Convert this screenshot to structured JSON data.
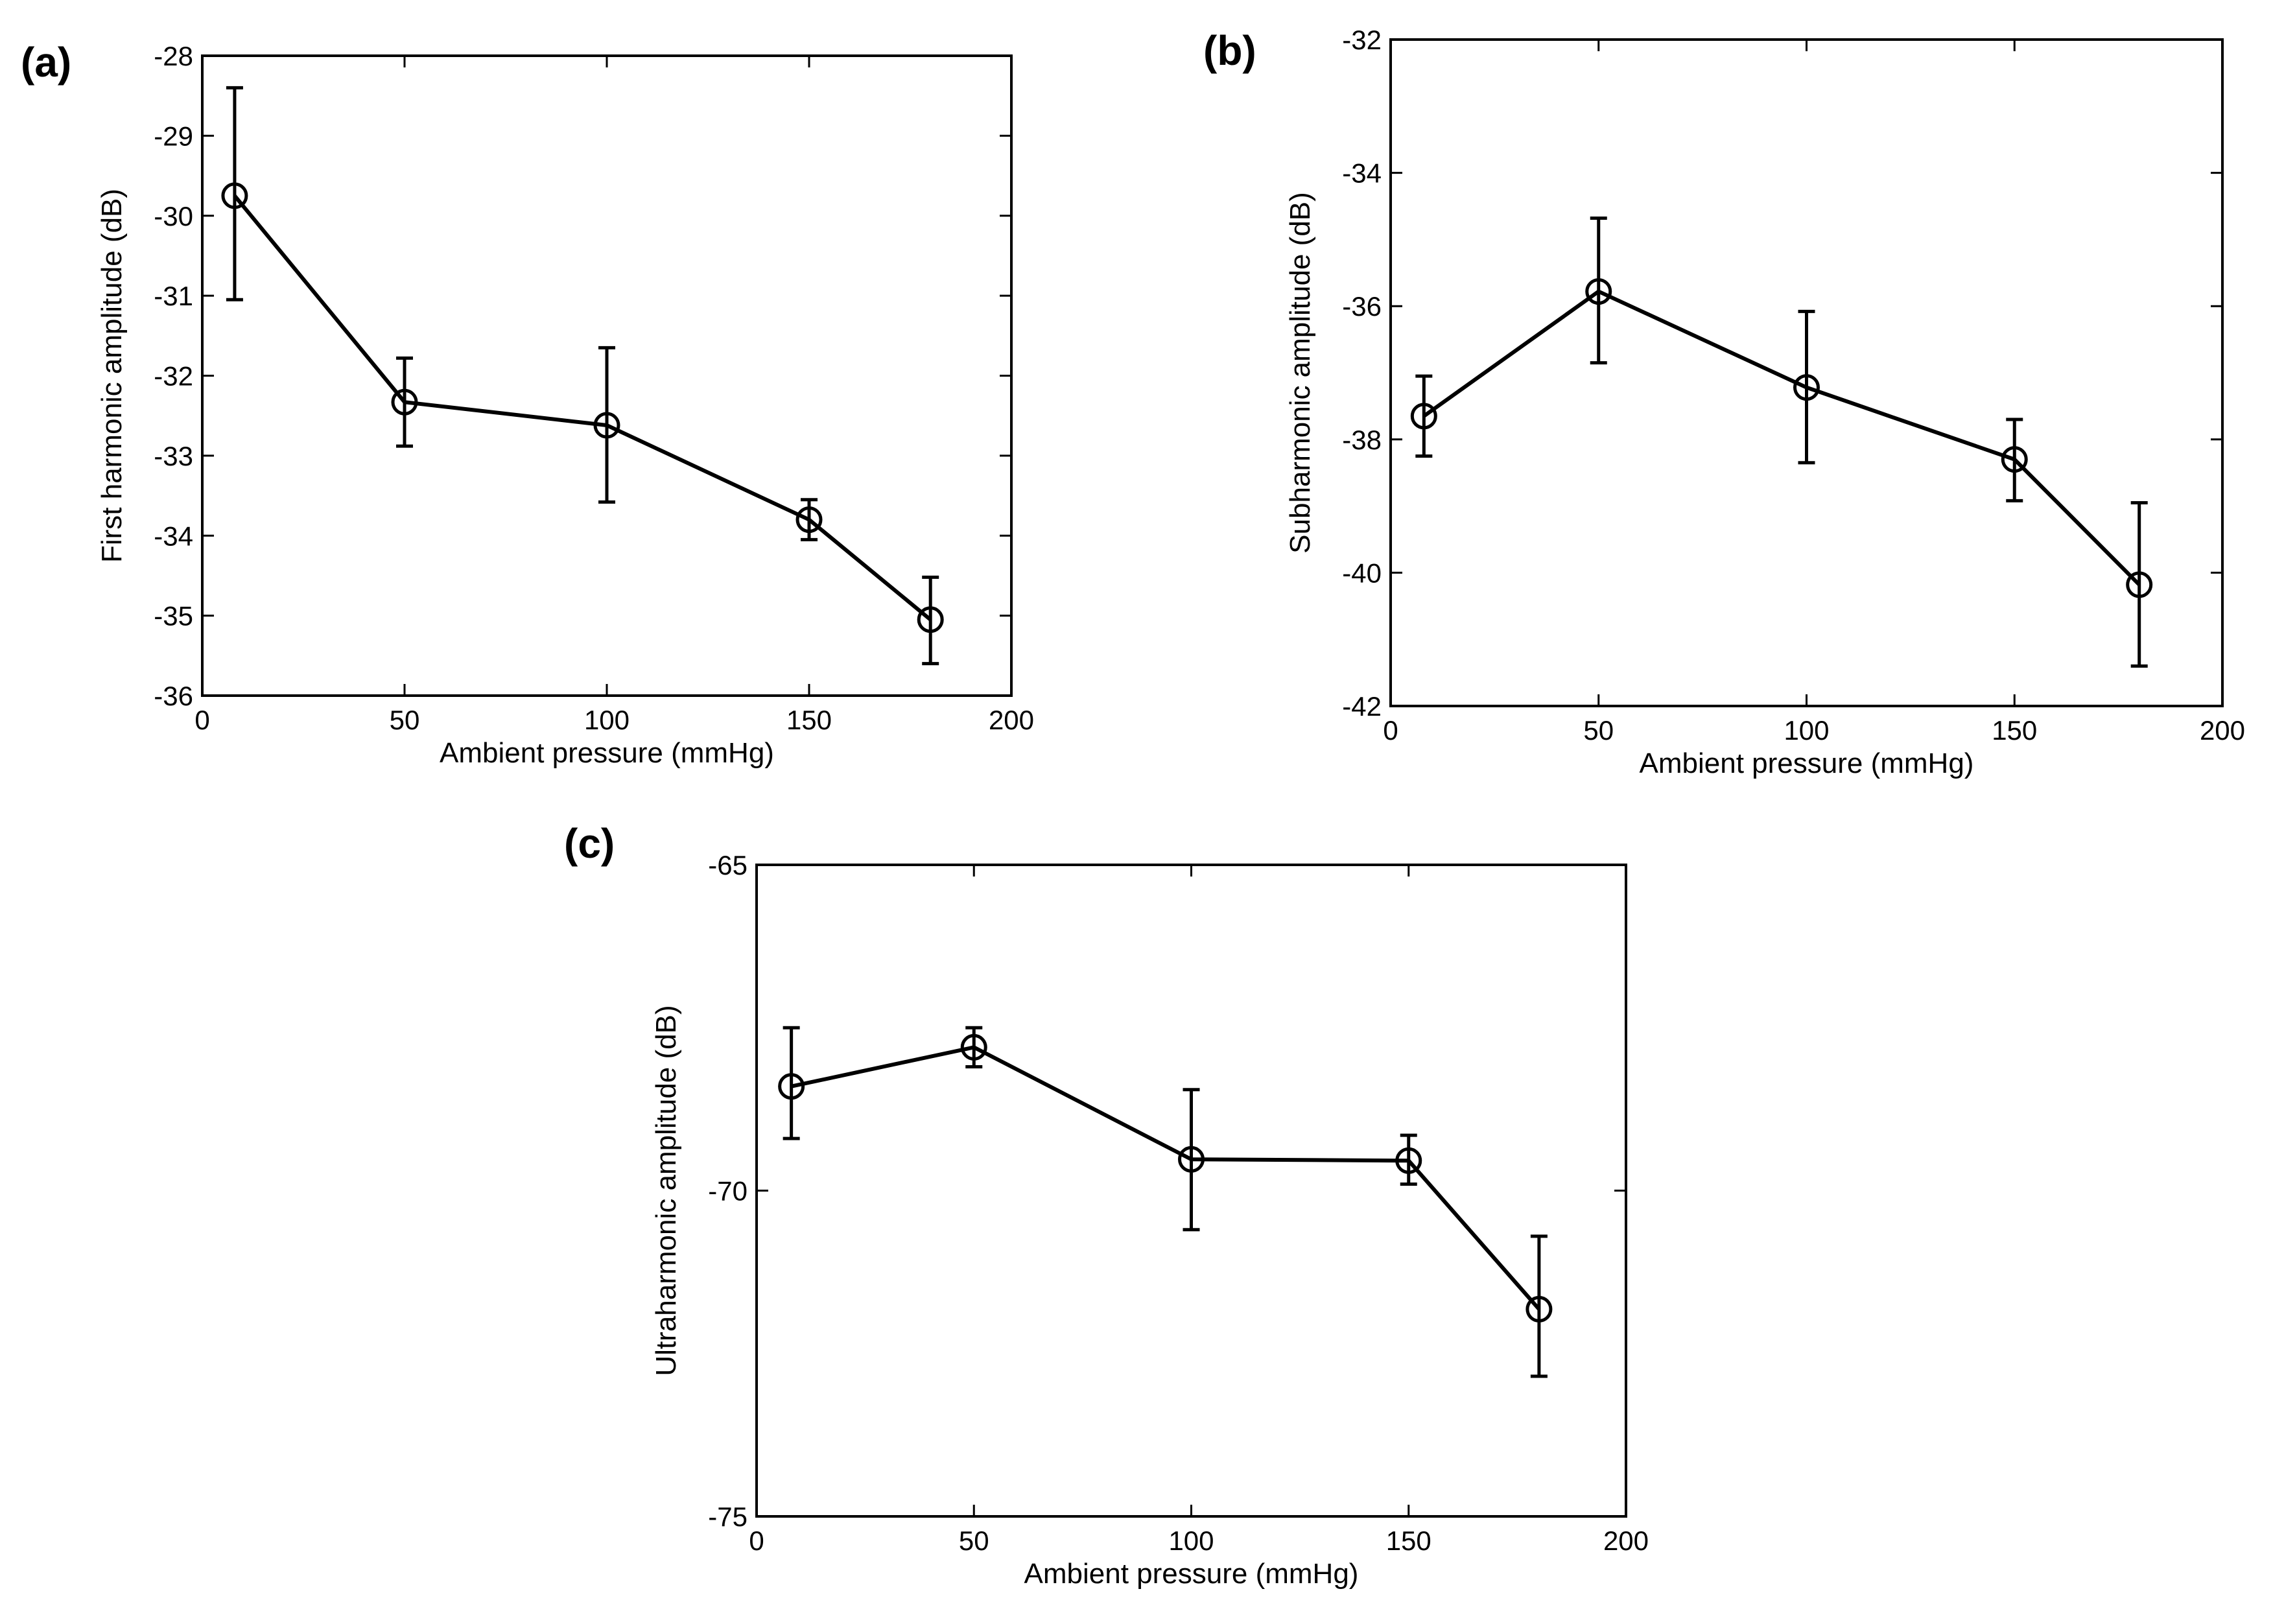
{
  "chart_data": [
    {
      "type": "line",
      "panel_label": "(a)",
      "xlabel": "Ambient pressure (mmHg)",
      "ylabel": "First harmonic amplitude (dB)",
      "xlim": [
        0,
        200
      ],
      "ylim": [
        -36,
        -28
      ],
      "xticks": [
        0,
        50,
        100,
        150,
        200
      ],
      "yticks": [
        -36,
        -35,
        -34,
        -33,
        -32,
        -31,
        -30,
        -29,
        -28
      ],
      "grid": false,
      "series": [
        {
          "name": "First harmonic",
          "marker": "circle",
          "x": [
            8,
            50,
            100,
            150,
            180
          ],
          "y": [
            -29.75,
            -32.33,
            -32.62,
            -33.8,
            -35.05
          ],
          "err_low": [
            -31.05,
            -32.88,
            -33.58,
            -34.05,
            -35.6
          ],
          "err_high": [
            -28.4,
            -31.78,
            -31.65,
            -33.55,
            -34.52
          ]
        }
      ]
    },
    {
      "type": "line",
      "panel_label": "(b)",
      "xlabel": "Ambient pressure (mmHg)",
      "ylabel": "Subharmonic amplitude (dB)",
      "xlim": [
        0,
        200
      ],
      "ylim": [
        -42,
        -32
      ],
      "xticks": [
        0,
        50,
        100,
        150,
        200
      ],
      "yticks": [
        -42,
        -40,
        -38,
        -36,
        -34,
        -32
      ],
      "grid": false,
      "series": [
        {
          "name": "Subharmonic",
          "marker": "circle",
          "x": [
            8,
            50,
            100,
            150,
            180
          ],
          "y": [
            -37.65,
            -35.78,
            -37.22,
            -38.3,
            -40.18
          ],
          "err_low": [
            -38.25,
            -36.85,
            -38.35,
            -38.92,
            -41.4
          ],
          "err_high": [
            -37.05,
            -34.68,
            -36.08,
            -37.7,
            -38.95
          ]
        }
      ]
    },
    {
      "type": "line",
      "panel_label": "(c)",
      "xlabel": "Ambient pressure (mmHg)",
      "ylabel": "Ultraharmonic amplitude (dB)",
      "xlim": [
        0,
        200
      ],
      "ylim": [
        -75,
        -65
      ],
      "xticks": [
        0,
        50,
        100,
        150,
        200
      ],
      "yticks": [
        -75,
        -70,
        -65
      ],
      "grid": false,
      "series": [
        {
          "name": "Ultraharmonic",
          "marker": "circle",
          "x": [
            8,
            50,
            100,
            150,
            180
          ],
          "y": [
            -68.4,
            -67.8,
            -69.52,
            -69.54,
            -71.82
          ],
          "err_low": [
            -69.2,
            -68.1,
            -70.6,
            -69.9,
            -72.85
          ],
          "err_high": [
            -67.5,
            -67.5,
            -68.45,
            -69.15,
            -70.7
          ]
        }
      ]
    }
  ]
}
